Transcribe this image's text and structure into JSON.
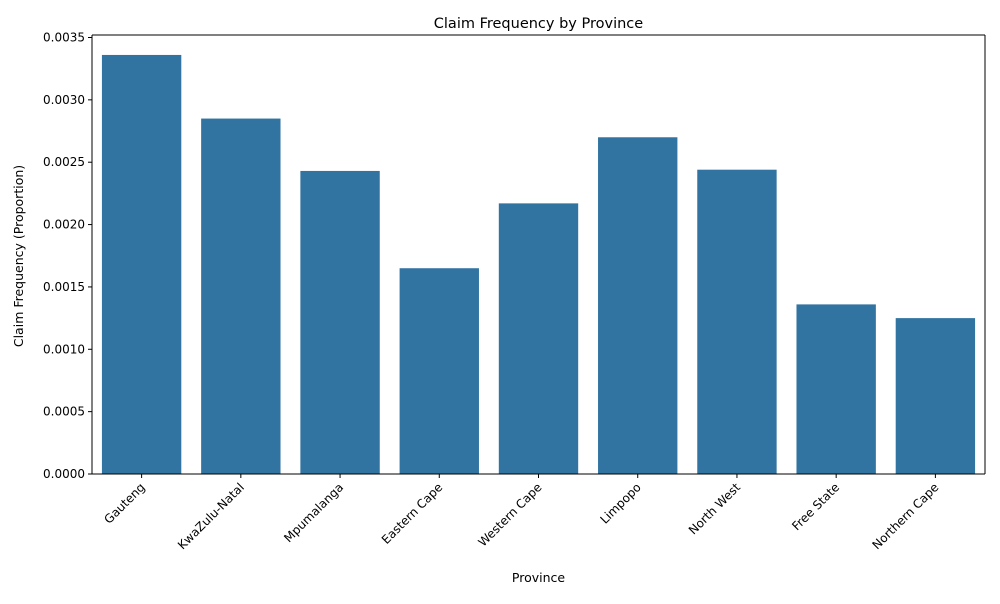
{
  "chart_data": {
    "type": "bar",
    "title": "Claim Frequency by Province",
    "xlabel": "Province",
    "ylabel": "Claim Frequency (Proportion)",
    "categories": [
      "Gauteng",
      "KwaZulu-Natal",
      "Mpumalanga",
      "Eastern Cape",
      "Western Cape",
      "Limpopo",
      "North West",
      "Free State",
      "Northern Cape"
    ],
    "values": [
      0.00336,
      0.00285,
      0.00243,
      0.00165,
      0.00217,
      0.0027,
      0.00244,
      0.00136,
      0.00125
    ],
    "ylim": [
      0,
      0.00352
    ],
    "yticks": [
      0.0,
      0.0005,
      0.001,
      0.0015,
      0.002,
      0.0025,
      0.003,
      0.0035
    ],
    "ytick_labels": [
      "0.0000",
      "0.0005",
      "0.0010",
      "0.0015",
      "0.0020",
      "0.0025",
      "0.0030",
      "0.0035"
    ],
    "grid": false,
    "legend": "none",
    "colors": {
      "bar": "#3274a1",
      "axis": "#000000"
    }
  }
}
